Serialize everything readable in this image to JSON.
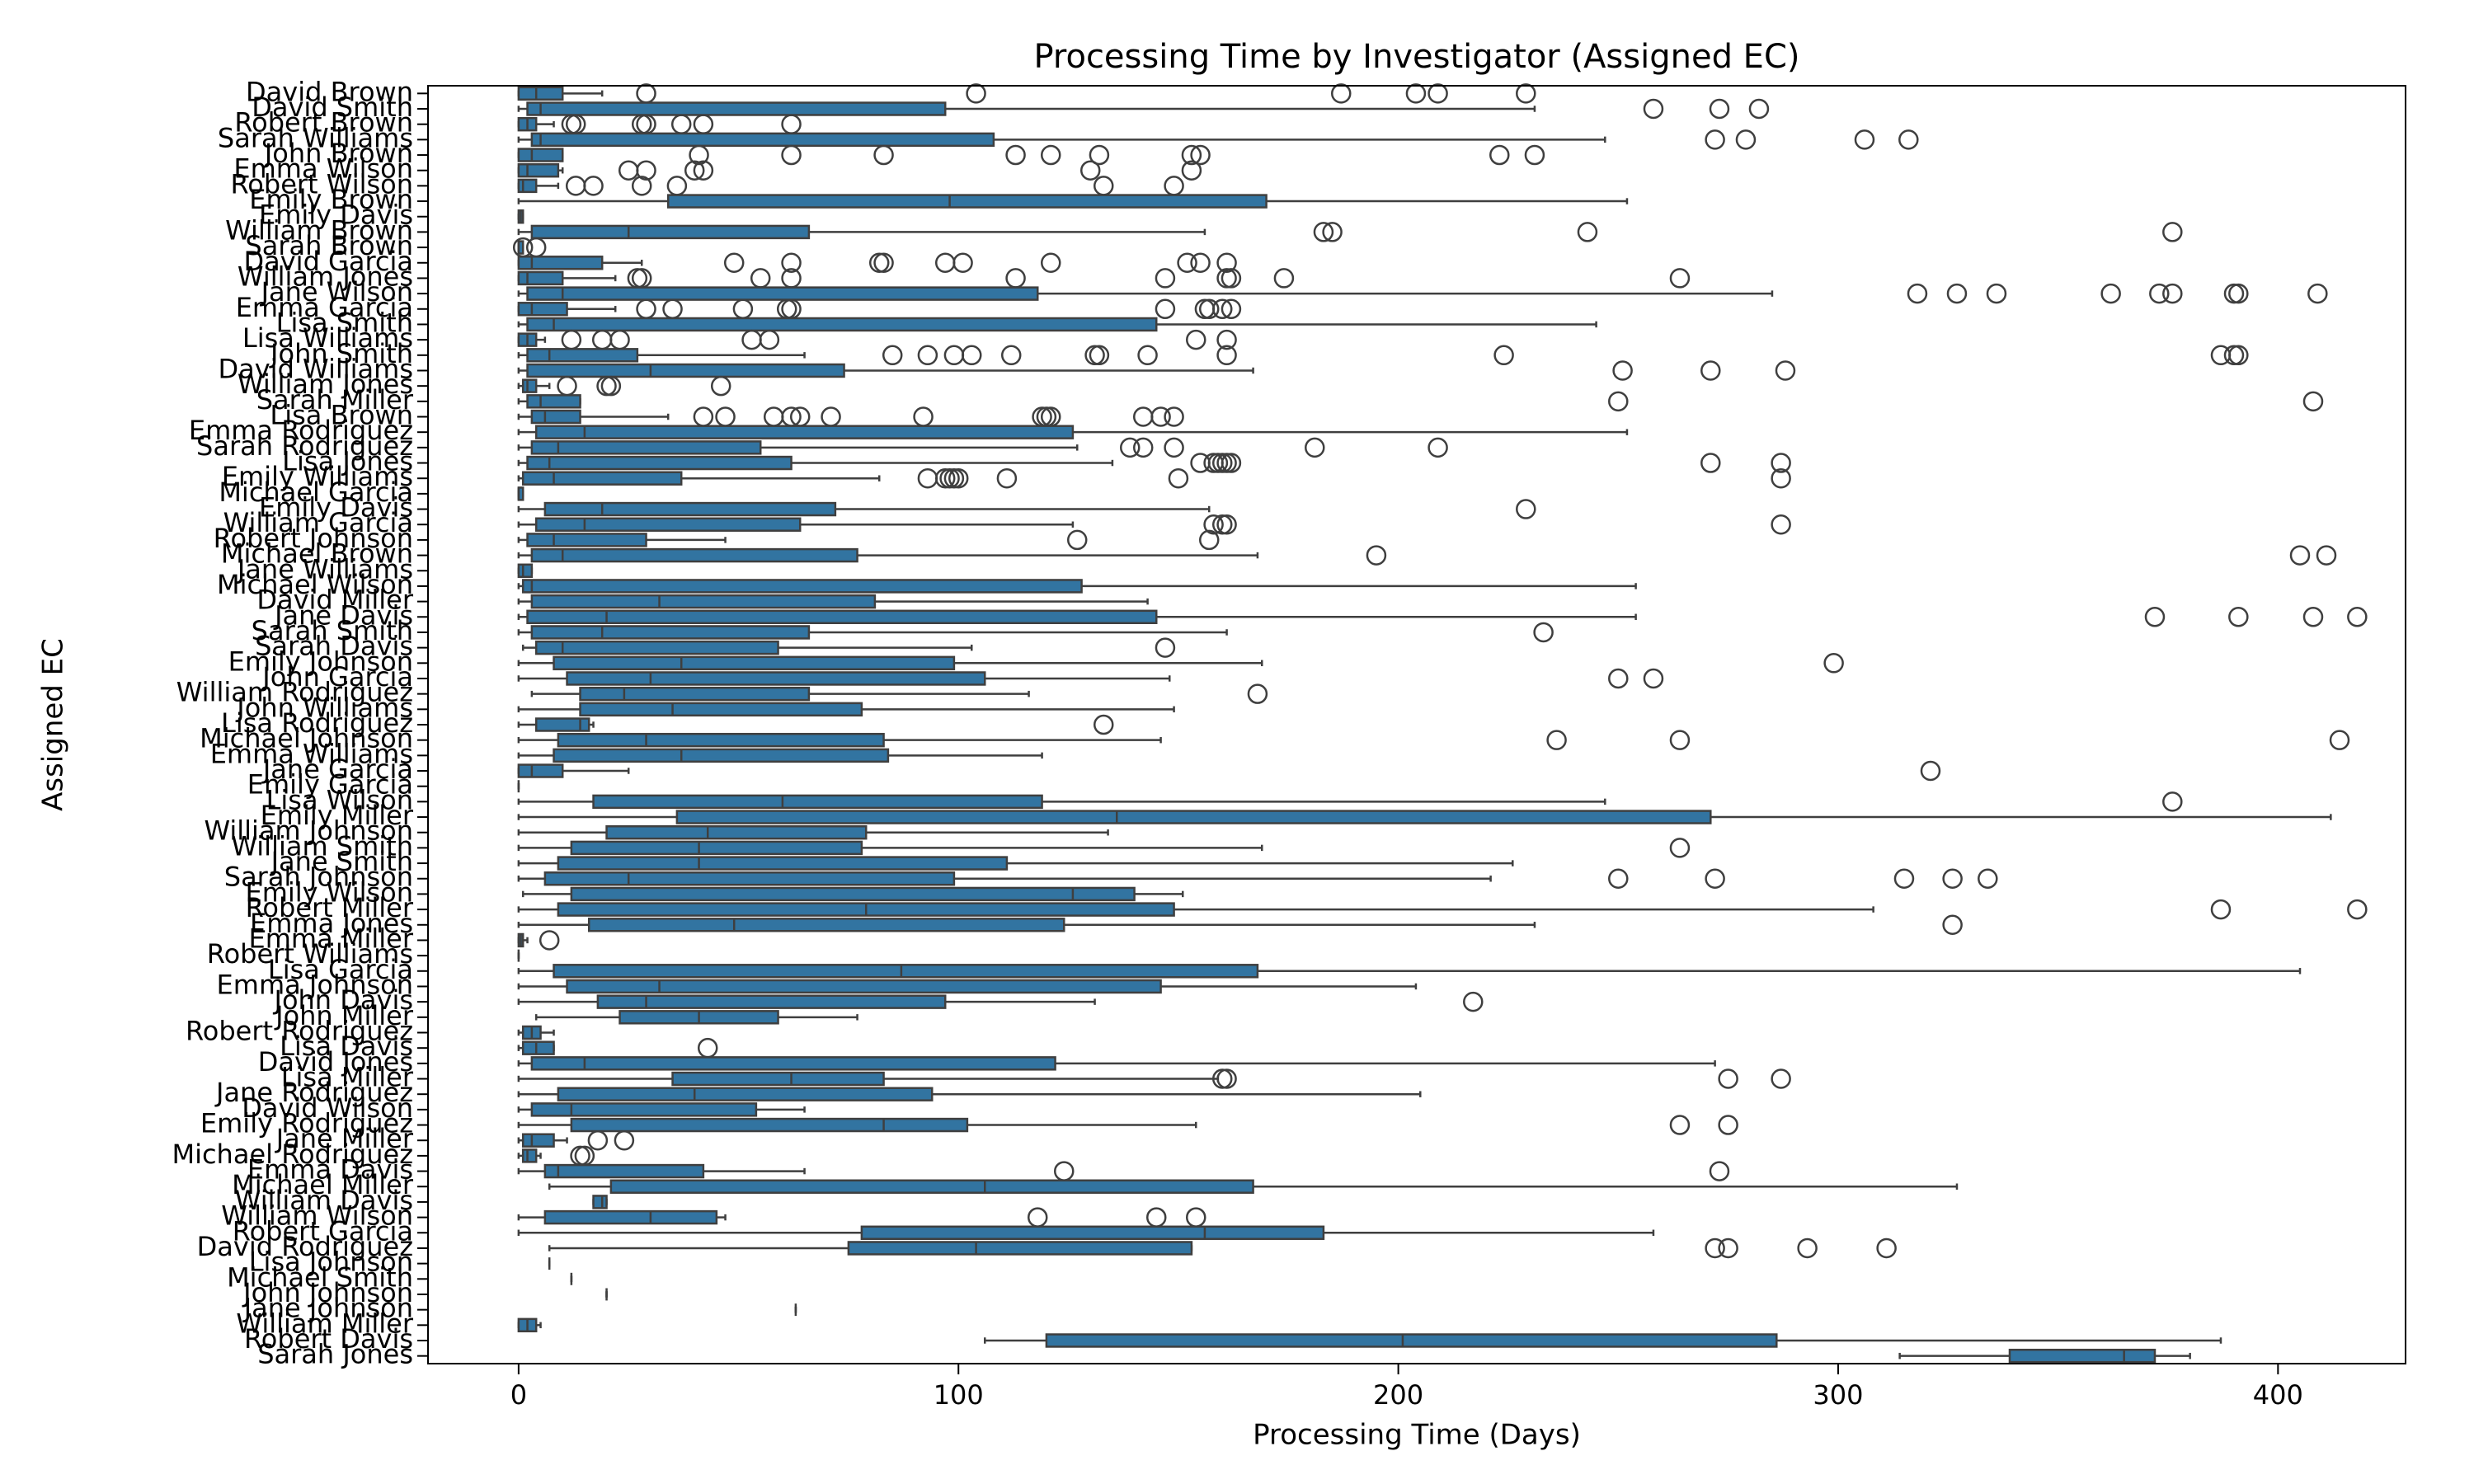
{
  "chart_data": {
    "type": "box",
    "title": "Processing Time by Investigator (Assigned EC)",
    "x_label": "Processing Time (Days)",
    "y_label": "Assigned EC",
    "orientation": "horizontal",
    "color": "#3274a1",
    "line_color": "#3f3f3f",
    "xlim": [
      -20.6,
      429
    ],
    "xticks": [
      0,
      100,
      200,
      300,
      400
    ],
    "categories": [
      "David Brown",
      "David Smith",
      "Robert Brown",
      "Sarah Williams",
      "John Brown",
      "Emma Wilson",
      "Robert Wilson",
      "Emily Brown",
      "Emily Davis",
      "William Brown",
      "Sarah Brown",
      "David Garcia",
      "William Jones",
      "Jane Wilson",
      "Emma Garcia",
      "Lisa Smith",
      "Lisa Williams",
      "John Smith",
      "David Williams",
      "William Jones",
      "Sarah Miller",
      "Lisa Brown",
      "Emma Rodriguez",
      "Sarah Rodriguez",
      "Lisa Jones",
      "Emily Williams",
      "Michael Garcia",
      "Emily Davis",
      "William Garcia",
      "Robert Johnson",
      "Michael Brown",
      "Jane Williams",
      "Michael Wilson",
      "David Miller",
      "Jane Davis",
      "Sarah Smith",
      "Sarah Davis",
      "Emily Johnson",
      "John Garcia",
      "William Rodriguez",
      "John Williams",
      "Lisa Rodriguez",
      "Michael Johnson",
      "Emma Williams",
      "Jane Garcia",
      "Emily Garcia",
      "Lisa Wilson",
      "Emily Miller",
      "William Johnson",
      "William Smith",
      "Jane Smith",
      "Sarah Johnson",
      "Emily Wilson",
      "Robert Miller",
      "Emma Jones",
      "Emma Miller",
      "Robert Williams",
      "Lisa Garcia",
      "Emma Johnson",
      "John Davis",
      "John Miller",
      "Robert Rodriguez",
      "Lisa Davis",
      "David Jones",
      "Lisa Miller",
      "Jane Rodriguez",
      "David Wilson",
      "Emily Rodriguez",
      "Jane Miller",
      "Michael Rodriguez",
      "Emma Davis",
      "Michael Miller",
      "William Davis",
      "William Wilson",
      "Robert Garcia",
      "David Rodriguez",
      "Lisa Johnson",
      "Michael Smith",
      "John Johnson",
      "Jane Johnson",
      "William Miller",
      "Robert Davis",
      "Sarah Jones"
    ],
    "boxes": [
      [
        0,
        0,
        4,
        10,
        19
      ],
      [
        0,
        2,
        5,
        97,
        231
      ],
      [
        0,
        0,
        2,
        4,
        8
      ],
      [
        0,
        3,
        5,
        108,
        247
      ],
      [
        0,
        0,
        3,
        10,
        10
      ],
      [
        0,
        0,
        2,
        9,
        10
      ],
      [
        0,
        0,
        1,
        4,
        9
      ],
      [
        0,
        34,
        98,
        170,
        252
      ],
      [
        0,
        0,
        0.5,
        1,
        1
      ],
      [
        0,
        3,
        25,
        66,
        156
      ],
      [
        0,
        0,
        0,
        1,
        1
      ],
      [
        0,
        0,
        3,
        19,
        28
      ],
      [
        0,
        0,
        2,
        10,
        22
      ],
      [
        0,
        2,
        10,
        118,
        285
      ],
      [
        0,
        0,
        3,
        11,
        22
      ],
      [
        0,
        2,
        8,
        145,
        245
      ],
      [
        0,
        0,
        2,
        4,
        6
      ],
      [
        0,
        2,
        7,
        27,
        65
      ],
      [
        0,
        2,
        30,
        74,
        167
      ],
      [
        0,
        1,
        2,
        4,
        7
      ],
      [
        0,
        2,
        5,
        14,
        14
      ],
      [
        0,
        3,
        6,
        14,
        34
      ],
      [
        0,
        4,
        15,
        126,
        252
      ],
      [
        0,
        3,
        9,
        55,
        127
      ],
      [
        0,
        2,
        7,
        62,
        135
      ],
      [
        0,
        1,
        8,
        37,
        82
      ],
      [
        0,
        0,
        0,
        1,
        1
      ],
      [
        0,
        6,
        19,
        72,
        157
      ],
      [
        0,
        4,
        15,
        64,
        126
      ],
      [
        0,
        2,
        8,
        29,
        47
      ],
      [
        0,
        3,
        10,
        77,
        168
      ],
      [
        0,
        0,
        1,
        3,
        3
      ],
      [
        0,
        1,
        3,
        128,
        254
      ],
      [
        0,
        3,
        32,
        81,
        143
      ],
      [
        0,
        2,
        20,
        145,
        254
      ],
      [
        0,
        3,
        19,
        66,
        161
      ],
      [
        1,
        4,
        10,
        59,
        103
      ],
      [
        0,
        8,
        37,
        99,
        169
      ],
      [
        0,
        11,
        30,
        106,
        148
      ],
      [
        3,
        14,
        24,
        66,
        116
      ],
      [
        0,
        14,
        35,
        78,
        149
      ],
      [
        0,
        4,
        14,
        16,
        17
      ],
      [
        0,
        9,
        29,
        83,
        146
      ],
      [
        0,
        8,
        37,
        84,
        119
      ],
      [
        0,
        0,
        3,
        10,
        25
      ],
      [
        0,
        0,
        0,
        0,
        0
      ],
      [
        0,
        17,
        60,
        119,
        247
      ],
      [
        0,
        36,
        136,
        271,
        412
      ],
      [
        0,
        20,
        43,
        79,
        134
      ],
      [
        0,
        12,
        41,
        78,
        169
      ],
      [
        0,
        9,
        41,
        111,
        226
      ],
      [
        0,
        6,
        25,
        99,
        221
      ],
      [
        1,
        12,
        126,
        140,
        151
      ],
      [
        0,
        9,
        79,
        149,
        308
      ],
      [
        0,
        16,
        49,
        124,
        231
      ],
      [
        0,
        0,
        0.5,
        1,
        2
      ],
      [
        0,
        0,
        0,
        0,
        0
      ],
      [
        0,
        8,
        87,
        168,
        405
      ],
      [
        0,
        11,
        32,
        146,
        204
      ],
      [
        0,
        18,
        29,
        97,
        131
      ],
      [
        4,
        23,
        41,
        59,
        77
      ],
      [
        0,
        1,
        3,
        5,
        8
      ],
      [
        0,
        1,
        4,
        8,
        8
      ],
      [
        0,
        3,
        15,
        122,
        272
      ],
      [
        0,
        35,
        62,
        83,
        159
      ],
      [
        0,
        9,
        40,
        94,
        205
      ],
      [
        0,
        3,
        12,
        54,
        65
      ],
      [
        0,
        12,
        83,
        102,
        154
      ],
      [
        0,
        1,
        3,
        8,
        11
      ],
      [
        0,
        1,
        2,
        4,
        5
      ],
      [
        0,
        6,
        9,
        42,
        65
      ],
      [
        7,
        21,
        106,
        167,
        327
      ],
      [
        17,
        17,
        19,
        20,
        20
      ],
      [
        0,
        6,
        30,
        45,
        47
      ],
      [
        0,
        78,
        156,
        183,
        258
      ],
      [
        7,
        75,
        104,
        153,
        153
      ],
      [
        7,
        7,
        7,
        7,
        7
      ],
      [
        12,
        12,
        12,
        12,
        12
      ],
      [
        20,
        20,
        20,
        20,
        20
      ],
      [
        63,
        63,
        63,
        63,
        63
      ],
      [
        0,
        0,
        2,
        4,
        5
      ],
      [
        106,
        120,
        201,
        286,
        387
      ],
      [
        314,
        339,
        365,
        372,
        380
      ]
    ],
    "outliers": [
      [
        29,
        104,
        187,
        204,
        209,
        229
      ],
      [
        258,
        273,
        282
      ],
      [
        12,
        13,
        28,
        29,
        37,
        42,
        62
      ],
      [
        272,
        279,
        306,
        316
      ],
      [
        41,
        62,
        83,
        113,
        121,
        132,
        153,
        155,
        223,
        231
      ],
      [
        25,
        29,
        40,
        42,
        130,
        153
      ],
      [
        13,
        17,
        28,
        36,
        133,
        149
      ],
      [],
      [],
      [
        183,
        185,
        243,
        376
      ],
      [
        1,
        4
      ],
      [
        49,
        62,
        82,
        83,
        97,
        101,
        121,
        152,
        155,
        161
      ],
      [
        27,
        28,
        55,
        62,
        113,
        147,
        161,
        162,
        174,
        264
      ],
      [
        318,
        327,
        336,
        362,
        373,
        376,
        390,
        391,
        409
      ],
      [
        29,
        35,
        51,
        61,
        62,
        147,
        156,
        157,
        160,
        162
      ],
      [],
      [
        12,
        19,
        23,
        53,
        57,
        154,
        161
      ],
      [
        85,
        93,
        99,
        103,
        112,
        131,
        132,
        143,
        161,
        224,
        387,
        390,
        391
      ],
      [
        251,
        271,
        288
      ],
      [
        11,
        20,
        21,
        46
      ],
      [
        250,
        408
      ],
      [
        42,
        47,
        58,
        62,
        64,
        71,
        92,
        119,
        120,
        121,
        142,
        146,
        149
      ],
      [],
      [
        139,
        142,
        149,
        181,
        209
      ],
      [
        155,
        158,
        159,
        160,
        161,
        162,
        271,
        287
      ],
      [
        93,
        97,
        98,
        99,
        100,
        111,
        150,
        287
      ],
      [],
      [
        229
      ],
      [
        158,
        160,
        161,
        287
      ],
      [
        127,
        157
      ],
      [
        195,
        405,
        411
      ],
      [],
      [],
      [],
      [
        372,
        391,
        408,
        418
      ],
      [
        233
      ],
      [
        147
      ],
      [
        299
      ],
      [
        250,
        258
      ],
      [
        168
      ],
      [],
      [
        133
      ],
      [
        236,
        264,
        414
      ],
      [],
      [
        321
      ],
      [],
      [
        376
      ],
      [],
      [],
      [
        264
      ],
      [],
      [
        250,
        272,
        315,
        326,
        334
      ],
      [],
      [
        387,
        418
      ],
      [
        326
      ],
      [
        7
      ],
      [],
      [],
      [],
      [
        217
      ],
      [],
      [],
      [
        43
      ],
      [],
      [
        160,
        161,
        275,
        287
      ],
      [],
      [],
      [
        264,
        275
      ],
      [
        18,
        24
      ],
      [
        14,
        15
      ],
      [
        124,
        273
      ],
      [],
      [],
      [
        118,
        145,
        154
      ],
      [],
      [
        272,
        275,
        293,
        311
      ],
      [],
      [],
      [],
      [],
      [],
      [],
      []
    ]
  }
}
